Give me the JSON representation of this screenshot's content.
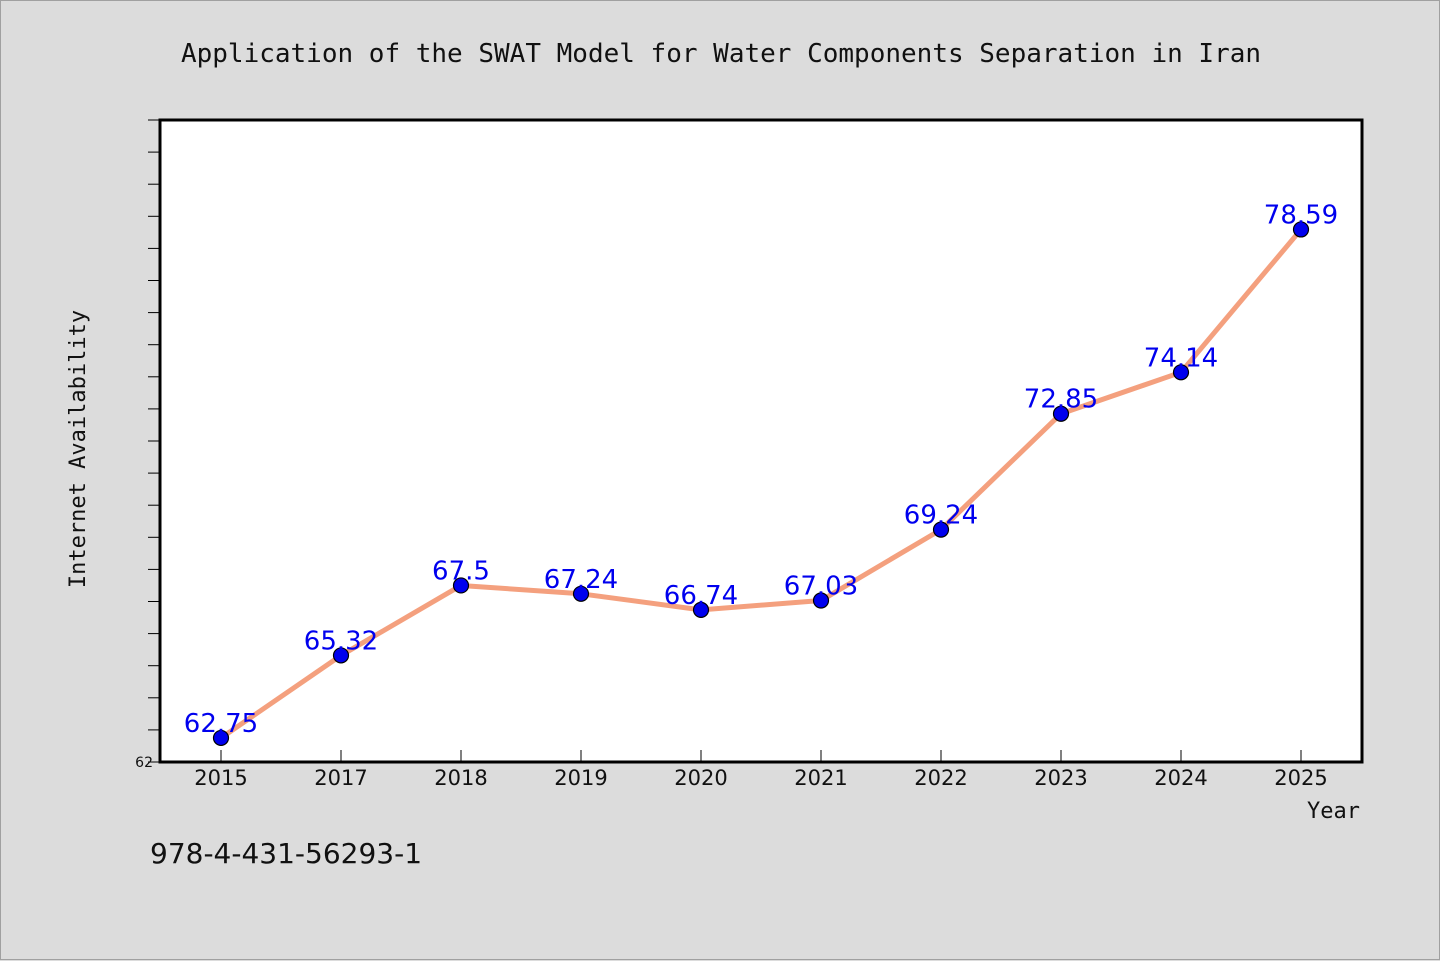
{
  "chart_data": {
    "type": "line",
    "title": "Application of the SWAT Model for Water Components Separation in Iran",
    "xlabel": "Year",
    "ylabel": "Internet Availability",
    "categories": [
      "2015",
      "2017",
      "2018",
      "2019",
      "2020",
      "2021",
      "2022",
      "2023",
      "2024",
      "2025"
    ],
    "series": [
      {
        "values": [
          62.75,
          65.32,
          67.5,
          67.24,
          66.74,
          67.03,
          69.24,
          72.85,
          74.14,
          78.59
        ]
      }
    ],
    "ylim": [
      62,
      82
    ],
    "y_tick_labels": [
      "62"
    ],
    "y_minor_tick_step": 1,
    "grid": false,
    "legend": "none",
    "colors": {
      "line": "#f4a07e",
      "marker": "#0000ee",
      "marker_edge": "#000000",
      "data_label": "#0000ee",
      "plot_background": "#ffffff",
      "page_background": "#dcdcdc"
    }
  },
  "footer": {
    "code": "978-4-431-56293-1"
  }
}
